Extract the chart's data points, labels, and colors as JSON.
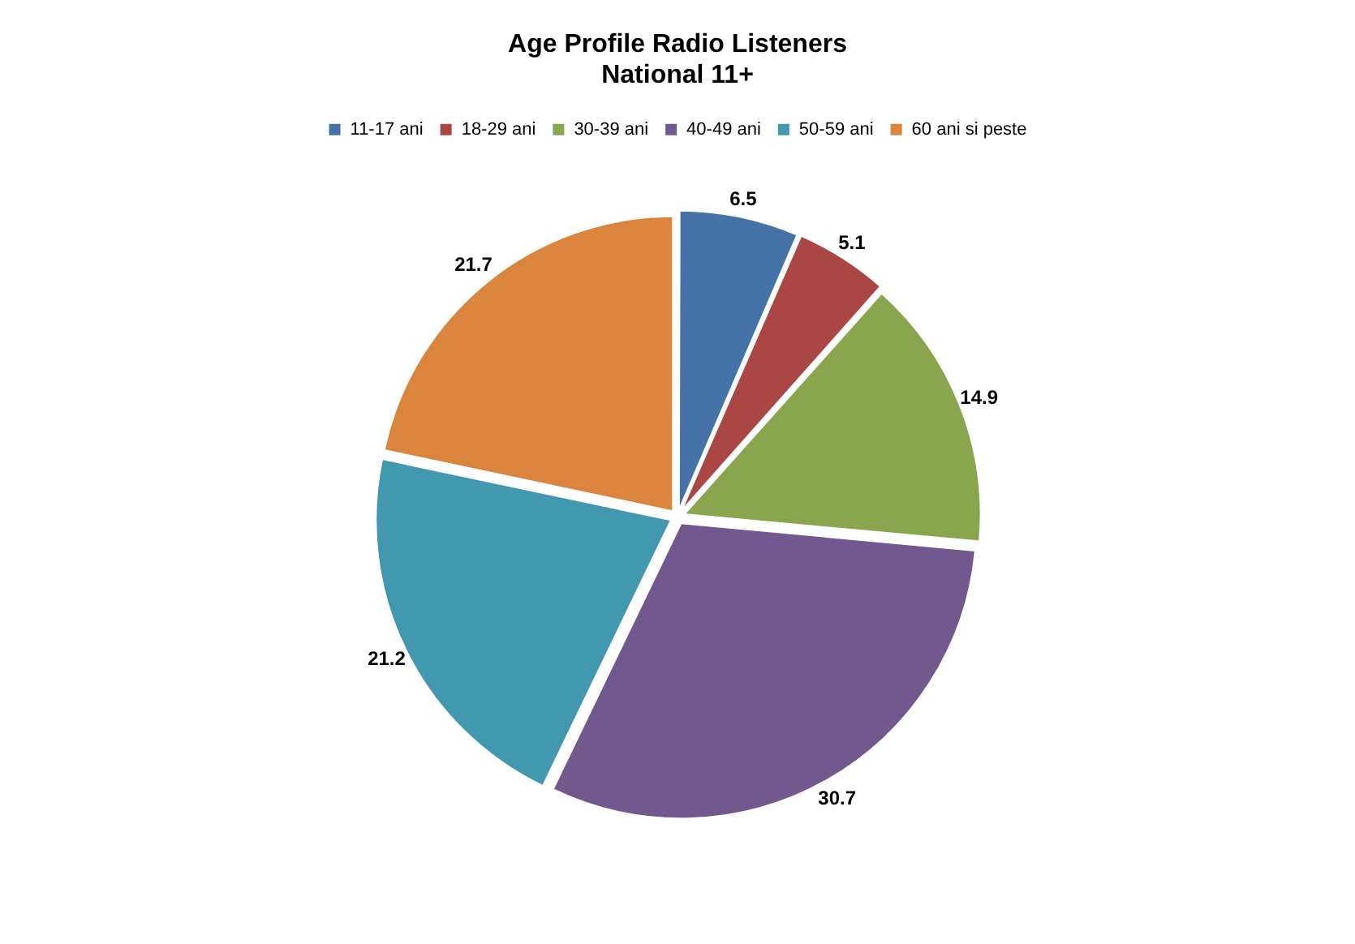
{
  "chart_data": {
    "type": "pie",
    "title": "Age Profile Radio Listeners",
    "subtitle": "National 11+",
    "categories": [
      "11-17 ani",
      "18-29 ani",
      "30-39 ani",
      "40-49 ani",
      "50-59 ani",
      "60 ani si peste"
    ],
    "values": [
      6.5,
      5.1,
      14.9,
      30.7,
      21.2,
      21.7
    ],
    "colors": [
      "#4572a7",
      "#aa4643",
      "#89a54e",
      "#71588f",
      "#4198af",
      "#db843d"
    ],
    "legend": "top",
    "data_labels": true
  }
}
